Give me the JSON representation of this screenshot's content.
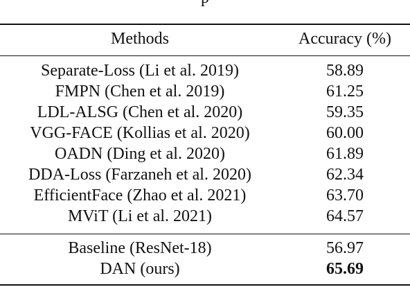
{
  "caption_fragment": "p",
  "table": {
    "headers": {
      "method": "Methods",
      "accuracy": "Accuracy (%)"
    },
    "group1": [
      {
        "method": "Separate-Loss (Li et al. 2019)",
        "accuracy": "58.89"
      },
      {
        "method": "FMPN (Chen et al. 2019)",
        "accuracy": "61.25"
      },
      {
        "method": "LDL-ALSG (Chen et al. 2020)",
        "accuracy": "59.35"
      },
      {
        "method": "VGG-FACE (Kollias et al. 2020)",
        "accuracy": "60.00"
      },
      {
        "method": "OADN (Ding et al. 2020)",
        "accuracy": "61.89"
      },
      {
        "method": "DDA-Loss (Farzaneh et al. 2020)",
        "accuracy": "62.34"
      },
      {
        "method": "EfficientFace (Zhao et al. 2021)",
        "accuracy": "63.70"
      },
      {
        "method": "MViT (Li et al. 2021)",
        "accuracy": "64.57"
      }
    ],
    "group2": [
      {
        "method": "Baseline (ResNet-18)",
        "accuracy": "56.97"
      },
      {
        "method": "DAN (ours)",
        "accuracy": "65.69",
        "best": true
      }
    ]
  }
}
